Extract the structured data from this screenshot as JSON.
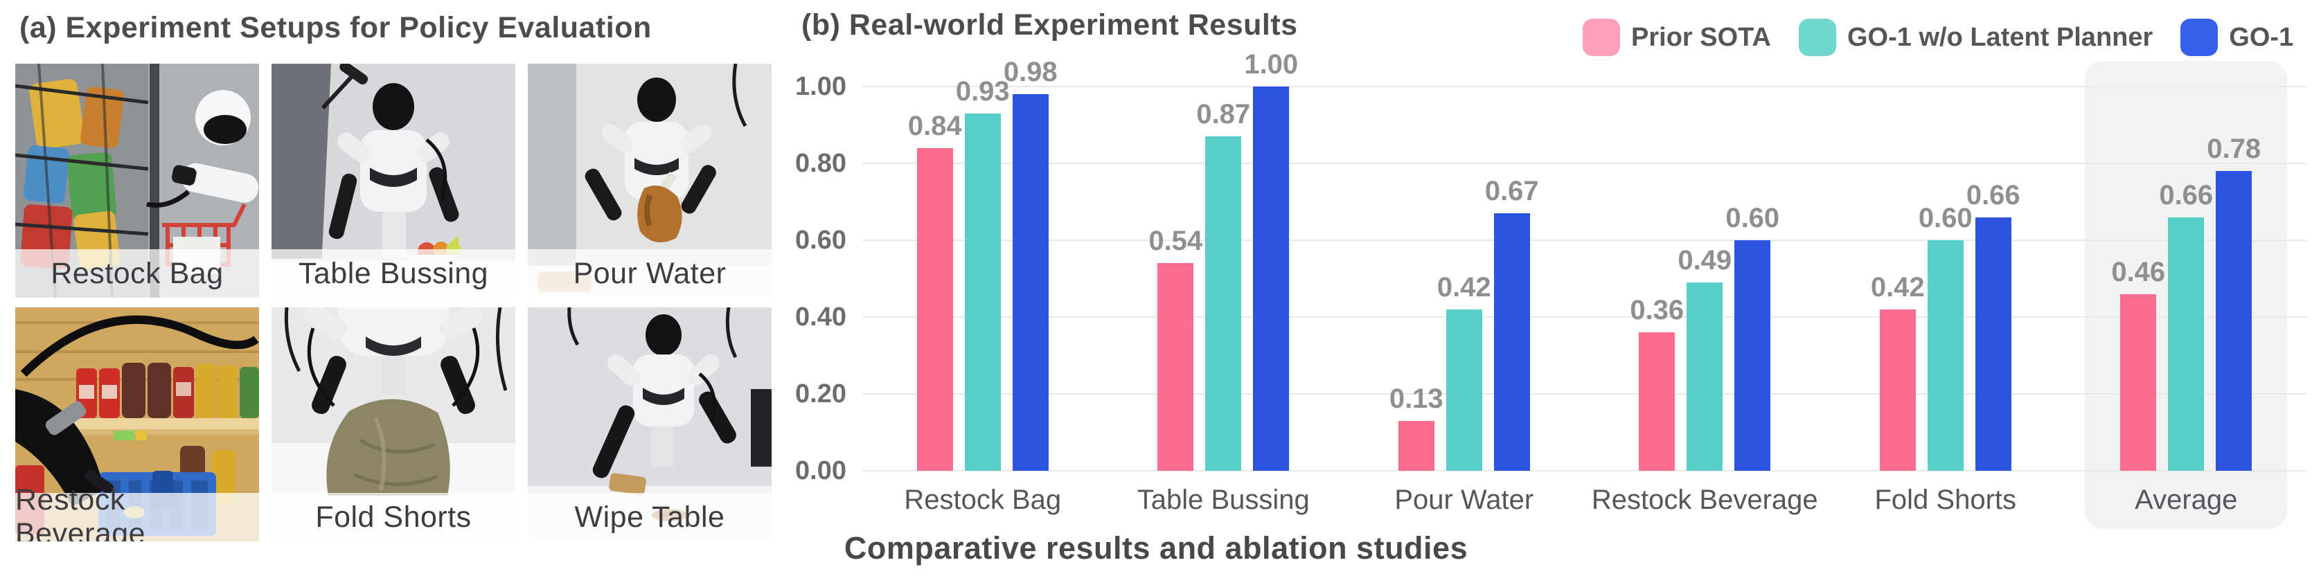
{
  "panel_a": {
    "title": "(a) Experiment Setups for Policy Evaluation",
    "photos": [
      {
        "label": "Restock Bag"
      },
      {
        "label": "Table Bussing"
      },
      {
        "label": "Pour Water"
      },
      {
        "label": "Restock Beverage"
      },
      {
        "label": "Fold Shorts"
      },
      {
        "label": "Wipe Table"
      }
    ]
  },
  "panel_b": {
    "title": "(b) Real-world Experiment Results",
    "caption": "Comparative results and ablation studies",
    "legend": [
      {
        "label": "Prior SOTA",
        "color": "#FFA0BA"
      },
      {
        "label": "GO-1 w/o Latent Planner",
        "color": "#6FD7CE"
      },
      {
        "label": "GO-1",
        "color": "#3560E8"
      }
    ]
  },
  "chart_data": {
    "type": "bar",
    "title": "(b) Real-world Experiment Results",
    "categories": [
      "Restock Bag",
      "Table Bussing",
      "Pour Water",
      "Restock Beverage",
      "Fold Shorts",
      "Average"
    ],
    "series": [
      {
        "name": "Prior SOTA",
        "color": "#FB6B8E",
        "values": [
          0.84,
          0.54,
          0.13,
          0.36,
          0.42,
          0.46
        ]
      },
      {
        "name": "GO-1 w/o Latent Planner",
        "color": "#56CFC8",
        "values": [
          0.93,
          0.87,
          0.42,
          0.49,
          0.6,
          0.66
        ]
      },
      {
        "name": "GO-1",
        "color": "#2C54DE",
        "values": [
          0.98,
          1.0,
          0.67,
          0.6,
          0.66,
          0.78
        ]
      }
    ],
    "y_ticks": [
      "1.00",
      "0.80",
      "0.60",
      "0.40",
      "0.20",
      "0.00"
    ],
    "ylim": [
      0,
      1
    ],
    "grid": true,
    "legend_position": "top-right",
    "highlighted_category": "Average",
    "value_label_format": "0.00"
  }
}
